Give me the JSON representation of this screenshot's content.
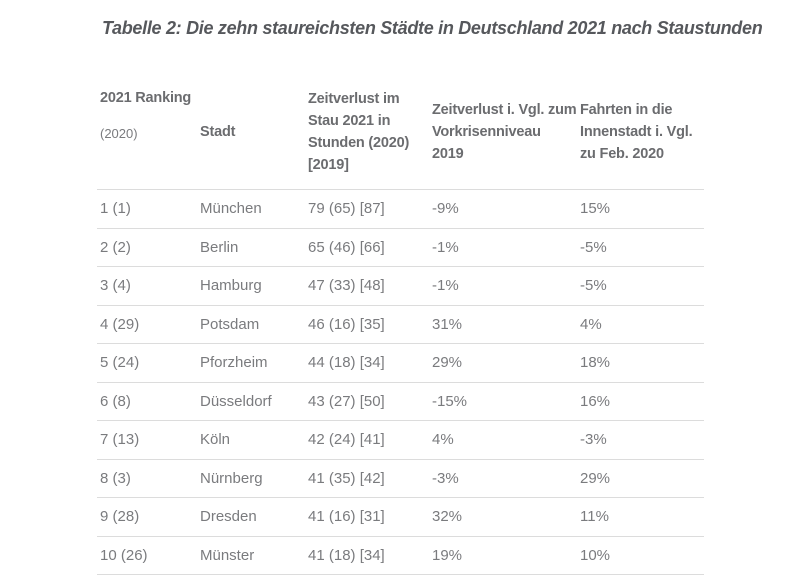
{
  "title": "Tabelle 2: Die zehn staureichsten Städte in Deutschland 2021 nach Staustunden",
  "table": {
    "columns": [
      {
        "id": "ranking-2021",
        "lines": [
          "2021 Ranking",
          "(2020)"
        ]
      },
      {
        "id": "stadt",
        "lines": [
          "Stadt"
        ]
      },
      {
        "id": "zeitverlust-stau",
        "lines": [
          "Zeitverlust im",
          "Stau 2021 in",
          "Stunden (2020)",
          "[2019]"
        ]
      },
      {
        "id": "zeitverlust-vorkrisenniveau",
        "lines": [
          "Zeitverlust i. Vgl. zum",
          "Vorkrisenniveau",
          "2019"
        ]
      },
      {
        "id": "fahrten-innenstadt",
        "lines": [
          "Fahrten in die",
          "Innenstadt i. Vgl.",
          "zu Feb. 2020"
        ]
      }
    ],
    "rows": [
      {
        "cells": [
          "1 (1)",
          "München",
          "79 (65) [87]",
          "-9%",
          "15%"
        ]
      },
      {
        "cells": [
          "2 (2)",
          "Berlin",
          "65 (46) [66]",
          "-1%",
          "-5%"
        ]
      },
      {
        "cells": [
          "3 (4)",
          "Hamburg",
          "47 (33) [48]",
          "-1%",
          "-5%"
        ]
      },
      {
        "cells": [
          "4 (29)",
          "Potsdam",
          "46 (16) [35]",
          "31%",
          "4%"
        ]
      },
      {
        "cells": [
          "5 (24)",
          "Pforzheim",
          "44 (18) [34]",
          "29%",
          "18%"
        ]
      },
      {
        "cells": [
          "6 (8)",
          "Düsseldorf",
          "43 (27) [50]",
          "-15%",
          "16%"
        ]
      },
      {
        "cells": [
          "7 (13)",
          "Köln",
          "42 (24) [41]",
          "4%",
          "-3%"
        ]
      },
      {
        "cells": [
          "8 (3)",
          "Nürnberg",
          "41 (35) [42]",
          "-3%",
          "29%"
        ]
      },
      {
        "cells": [
          "9 (28)",
          "Dresden",
          "41 (16) [31]",
          "32%",
          "11%"
        ]
      },
      {
        "cells": [
          "10 (26)",
          "Münster",
          "41 (18) [34]",
          "19%",
          "10%"
        ]
      }
    ]
  },
  "colors": {
    "background": "#ffffff",
    "title_text": "#56585c",
    "header_text": "#6b6c6f",
    "body_text": "#7a7b7e",
    "row_border": "#dcdcdc"
  }
}
